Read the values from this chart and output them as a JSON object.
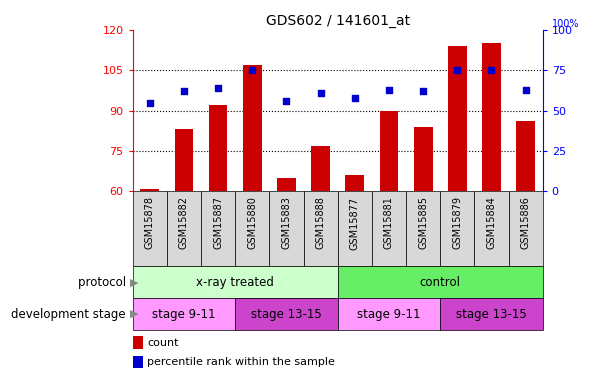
{
  "title": "GDS602 / 141601_at",
  "samples": [
    "GSM15878",
    "GSM15882",
    "GSM15887",
    "GSM15880",
    "GSM15883",
    "GSM15888",
    "GSM15877",
    "GSM15881",
    "GSM15885",
    "GSM15879",
    "GSM15884",
    "GSM15886"
  ],
  "counts": [
    61,
    83,
    92,
    107,
    65,
    77,
    66,
    90,
    84,
    114,
    115,
    86
  ],
  "percentiles": [
    55,
    62,
    64,
    75,
    56,
    61,
    58,
    63,
    62,
    75,
    75,
    63
  ],
  "ylim_left": [
    60,
    120
  ],
  "ylim_right": [
    0,
    100
  ],
  "yticks_left": [
    60,
    75,
    90,
    105,
    120
  ],
  "yticks_right": [
    0,
    25,
    50,
    75,
    100
  ],
  "bar_color": "#cc0000",
  "dot_color": "#0000cc",
  "protocol_groups": [
    {
      "label": "x-ray treated",
      "start": 0,
      "end": 6,
      "color": "#ccffcc"
    },
    {
      "label": "control",
      "start": 6,
      "end": 12,
      "color": "#66ee66"
    }
  ],
  "stage_groups": [
    {
      "label": "stage 9-11",
      "start": 0,
      "end": 3,
      "color": "#ff99ff"
    },
    {
      "label": "stage 13-15",
      "start": 3,
      "end": 6,
      "color": "#cc44cc"
    },
    {
      "label": "stage 9-11",
      "start": 6,
      "end": 9,
      "color": "#ff99ff"
    },
    {
      "label": "stage 13-15",
      "start": 9,
      "end": 12,
      "color": "#cc44cc"
    }
  ],
  "label_protocol": "protocol",
  "label_stage": "development stage",
  "legend_bar": "count",
  "legend_dot": "percentile rank within the sample"
}
